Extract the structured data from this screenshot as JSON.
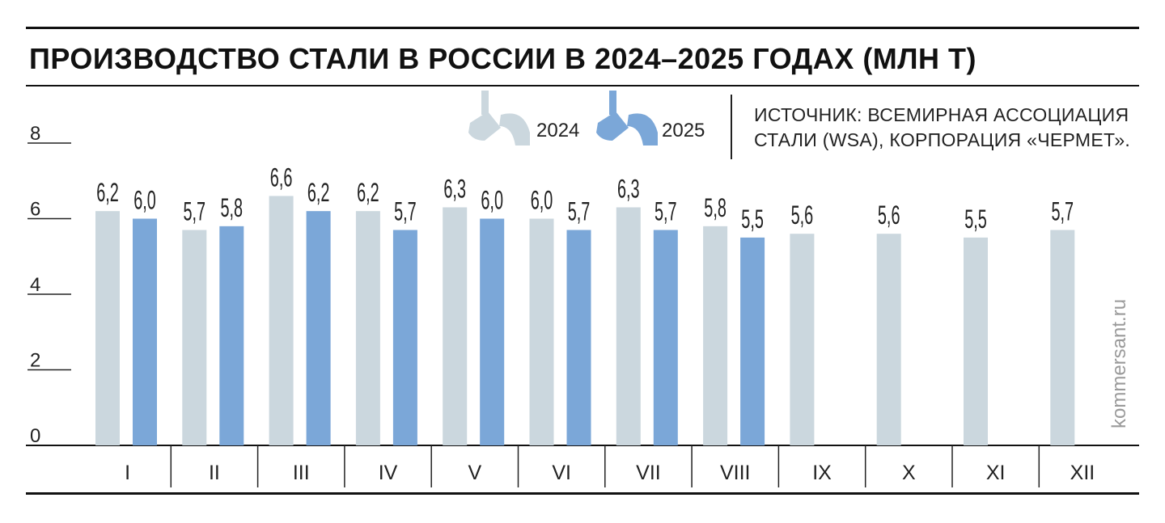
{
  "title": "ПРОИЗВОДСТВО СТАЛИ В РОССИИ В 2024–2025 ГОДАХ (МЛН Т)",
  "legend": {
    "items": [
      {
        "label": "2024",
        "color": "#cbd7de",
        "icon": "ladle-icon"
      },
      {
        "label": "2025",
        "color": "#7ba7d8",
        "icon": "ladle-icon"
      }
    ]
  },
  "source": {
    "line1": "ИСТОЧНИК: ВСЕМИРНАЯ АССОЦИАЦИЯ",
    "line2": "СТАЛИ (WSA), КОРПОРАЦИЯ  «ЧЕРМЕТ»."
  },
  "watermark": "kommersant.ru",
  "chart_data": {
    "type": "bar",
    "title": "ПРОИЗВОДСТВО СТАЛИ В РОССИИ В 2024–2025 ГОДАХ (МЛН Т)",
    "categories": [
      "I",
      "II",
      "III",
      "IV",
      "V",
      "VI",
      "VII",
      "VIII",
      "IX",
      "X",
      "XI",
      "XII"
    ],
    "series": [
      {
        "name": "2024",
        "color": "#cbd7de",
        "values": [
          6.2,
          5.7,
          6.6,
          6.2,
          6.3,
          6.0,
          6.3,
          5.8,
          5.6,
          5.6,
          5.5,
          5.7
        ],
        "labels": [
          "6,2",
          "5,7",
          "6,6",
          "6,2",
          "6,3",
          "6,0",
          "6,3",
          "5,8",
          "5,6",
          "5,6",
          "5,5",
          "5,7"
        ]
      },
      {
        "name": "2025",
        "color": "#7ba7d8",
        "values": [
          6.0,
          5.8,
          6.2,
          5.7,
          6.0,
          5.7,
          5.7,
          5.5,
          null,
          null,
          null,
          null
        ],
        "labels": [
          "6,0",
          "5,8",
          "6,2",
          "5,7",
          "6,0",
          "5,7",
          "5,7",
          "5,5",
          "",
          "",
          "",
          ""
        ]
      }
    ],
    "yticks": [
      "0",
      "2",
      "4",
      "6",
      "8"
    ],
    "ylim": [
      0,
      8
    ],
    "xlabel": "",
    "ylabel": "",
    "grid": false,
    "legend_position": "top"
  }
}
